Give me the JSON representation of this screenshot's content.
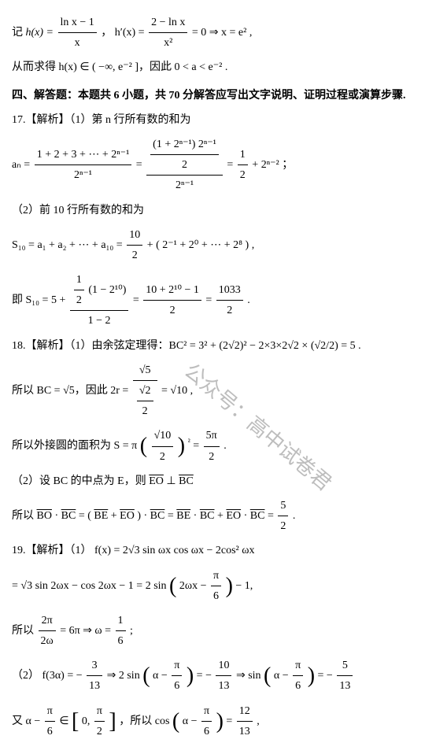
{
  "watermark_text": "公众号：高中试卷君",
  "pre_section": {
    "line1_a": "记 ",
    "line1_b": "h(x) = ",
    "line1_frac_num": "ln x − 1",
    "line1_frac_den": "x",
    "line1_c": "，  h′(x) = ",
    "line1_frac2_num": "2 − ln x",
    "line1_frac2_den": "x²",
    "line1_d": " = 0 ⇒ x = e² ,",
    "line2_a": "从而求得 h(x) ∈ ( −∞, e⁻² ]，因此 0 < a < e⁻² ."
  },
  "section4_title": "四、解答题：本题共 6 小题，共 70 分解答应写出文字说明、证明过程或演算步骤.",
  "q17": {
    "p1_head": "17.【解析】（1）第 n 行所有数的和为",
    "an_label": "aₙ = ",
    "an_lvl1_num": "1 + 2 + 3 + ⋯ + 2ⁿ⁻¹",
    "an_lvl1_den": "2ⁿ⁻¹",
    "an_eq1": " = ",
    "an_lvl2_num_num": "(1 + 2ⁿ⁻¹) 2ⁿ⁻¹",
    "an_lvl2_num_den": "2",
    "an_lvl2_den": "2ⁿ⁻¹",
    "an_eq2": " = ",
    "an_res_num": "1",
    "an_res_den": "2",
    "an_res_tail": " + 2ⁿ⁻² ；",
    "p2_head": "（2）前 10 行所有数的和为",
    "s10_line1": "S₁₀ = a₁ + a₂ + ⋯ + a₁₀ = ",
    "s10_frac1_num": "10",
    "s10_frac1_den": "2",
    "s10_line1_tail": " + ( 2⁻¹ + 2⁰ + ⋯ + 2⁸ ) ,",
    "s10_line2_head": "即 S₁₀ = 5 + ",
    "s10_top_num_a": "1",
    "s10_top_num_b": "2",
    "s10_top_paren": "(1 − 2¹⁰)",
    "s10_bot": "1 − 2",
    "s10_eq1": " = ",
    "s10_frac2_num": "10 + 2¹⁰ − 1",
    "s10_frac2_den": "2",
    "s10_eq2": " = ",
    "s10_frac3_num": "1033",
    "s10_frac3_den": "2",
    "s10_tail": " ."
  },
  "q18": {
    "p1": "18.【解析】（1）由余弦定理得：BC² = 3² + (2√2)² − 2×3×2√2 × (√2/2) = 5 .",
    "p2_a": "所以 BC = √5，因此 2r = ",
    "p2_frac_num": "√5",
    "p2_frac_den_num": "√2",
    "p2_frac_den_den": "2",
    "p2_tail": " = √10 ,",
    "p3_a": "所以外接圆的面积为 S = π",
    "p3_frac_num": "√10",
    "p3_frac_den": "2",
    "p3_sq": "²",
    "p3_eq": " = ",
    "p3_res_num": "5π",
    "p3_res_den": "2",
    "p3_tail": " .",
    "p4": "（2）设 BC 的中点为 E，则 EO ⊥ BC",
    "p5_a": "所以 BO · BC = ( BE + EO ) · BC = BE · BC + EO · BC = ",
    "p5_num": "5",
    "p5_den": "2",
    "p5_tail": " ."
  },
  "q19": {
    "p1": "19.【解析】（1） f(x) = 2√3 sin ωx cos ωx − 2cos² ωx",
    "p2_a": "= √3 sin 2ωx − cos 2ωx − 1 = 2 sin",
    "p2_paren_a": "2ωx − ",
    "p2_paren_num": "π",
    "p2_paren_den": "6",
    "p2_tail": " − 1,",
    "p3_a": "所以 ",
    "p3_frac_num": "2π",
    "p3_frac_den": "2ω",
    "p3_mid": " = 6π ⇒ ω = ",
    "p3_res_num": "1",
    "p3_res_den": "6",
    "p3_tail": " ;",
    "p4_a": "（2） f(3α) = − ",
    "p4_f1_num": "3",
    "p4_f1_den": "13",
    "p4_b": " ⇒ 2 sin",
    "p4_paren1_a": "α − ",
    "p4_paren1_num": "π",
    "p4_paren1_den": "6",
    "p4_c": " = − ",
    "p4_f2_num": "10",
    "p4_f2_den": "13",
    "p4_d": " ⇒ sin",
    "p4_paren2_a": "α − ",
    "p4_paren2_num": "π",
    "p4_paren2_den": "6",
    "p4_e": " = − ",
    "p4_f3_num": "5",
    "p4_f3_den": "13",
    "p5_a": "又 α − ",
    "p5_f1_num": "π",
    "p5_f1_den": "6",
    "p5_b": " ∈ ",
    "p5_int_a": "0, ",
    "p5_int_num": "π",
    "p5_int_den": "2",
    "p5_c": "，所以 cos",
    "p5_paren_a": "α − ",
    "p5_paren_num": "π",
    "p5_paren_den": "6",
    "p5_d": " = ",
    "p5_res_num": "12",
    "p5_res_den": "13",
    "p5_tail": " ,"
  }
}
